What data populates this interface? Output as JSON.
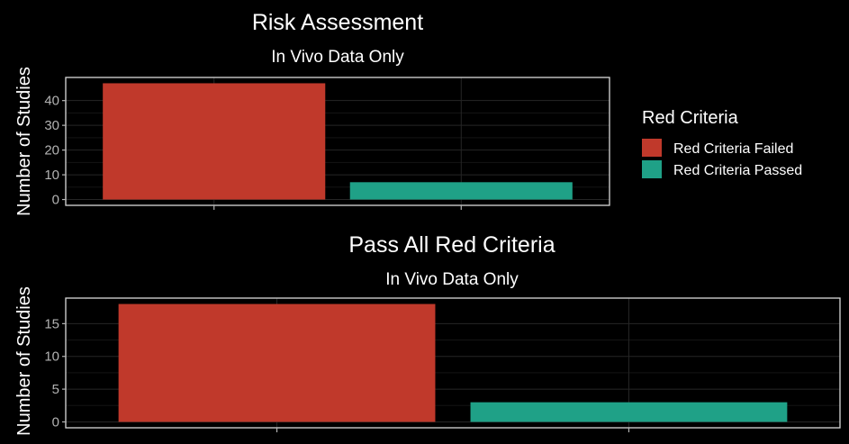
{
  "chart_data": [
    {
      "type": "bar",
      "title": "Risk Assessment",
      "subtitle": "In Vivo Data Only",
      "xlabel": "",
      "ylabel": "Number of Studies",
      "categories": [
        "Red Criteria Failed",
        "Red Criteria Passed"
      ],
      "values": [
        47,
        7
      ],
      "colors": [
        "#c0392b",
        "#1fa187"
      ],
      "ylim": [
        -2.35,
        49.35
      ],
      "yticks": [
        0,
        10,
        20,
        30,
        40
      ],
      "grid": true,
      "legend": "none"
    },
    {
      "type": "bar",
      "title": "Pass All Red Criteria",
      "subtitle": "In Vivo Data Only",
      "xlabel": "",
      "ylabel": "Number of Studies",
      "categories": [
        "Red Criteria Failed",
        "Red Criteria Passed"
      ],
      "values": [
        18,
        3
      ],
      "colors": [
        "#c0392b",
        "#1fa187"
      ],
      "ylim": [
        -0.9,
        18.9
      ],
      "yticks": [
        0,
        5,
        10,
        15
      ],
      "grid": true,
      "legend": "none"
    }
  ],
  "legend": {
    "title": "Red Criteria",
    "placement": "right",
    "items": [
      {
        "label": "Red Criteria Failed",
        "color": "#c0392b"
      },
      {
        "label": "Red Criteria Passed",
        "color": "#1fa187"
      }
    ]
  }
}
